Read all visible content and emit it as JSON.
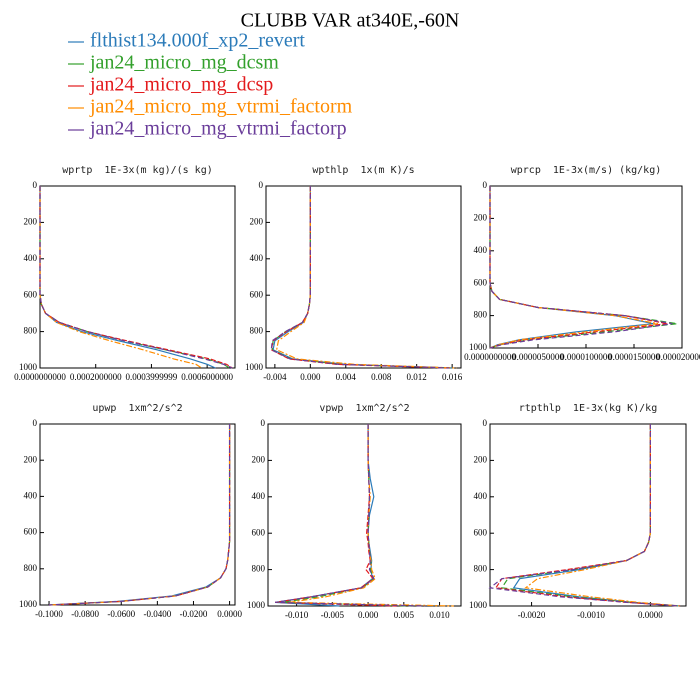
{
  "title": "CLUBB VAR at340E,-60N",
  "legend": [
    {
      "name": "flthist134.000f_xp2_revert",
      "color": "#2b7bb9"
    },
    {
      "name": "jan24_micro_mg_dcsm",
      "color": "#33a02c"
    },
    {
      "name": "jan24_micro_mg_dcsp",
      "color": "#e31a1c"
    },
    {
      "name": "jan24_micro_mg_vtrmi_factorm",
      "color": "#ff8c00"
    },
    {
      "name": "jan24_micro_mg_vtrmi_factorp",
      "color": "#6a3d9a"
    }
  ],
  "chart_data": [
    {
      "type": "profile",
      "title": "wprtp  1E-3x(m kg)/(s kg)",
      "levels": [
        0,
        100,
        200,
        300,
        400,
        500,
        600,
        650,
        700,
        750,
        800,
        850,
        900,
        950,
        980,
        1000
      ],
      "xlim": [
        0,
        0.0007
      ],
      "xticks": [
        {
          "value": 0,
          "label": "0.0000000000"
        },
        {
          "value": 0.0002,
          "label": "0.0002000000"
        },
        {
          "value": 0.0004,
          "label": "0.0003999999"
        },
        {
          "value": 0.0006,
          "label": "0.0006000000"
        }
      ],
      "ylim": [
        0,
        1000
      ],
      "yticks": [
        0,
        200,
        400,
        600,
        800,
        1000
      ],
      "invert_y": true,
      "series": [
        {
          "values": [
            0,
            0,
            0,
            0,
            0,
            0,
            0,
            5e-06,
            2e-05,
            6e-05,
            0.00015,
            0.00028,
            0.00042,
            0.00054,
            0.0006,
            0.00063
          ]
        },
        {
          "values": [
            0,
            0,
            0,
            0,
            0,
            0,
            0,
            5e-06,
            2e-05,
            7e-05,
            0.00017,
            0.0003,
            0.00045,
            0.0006,
            0.00066,
            0.00068
          ]
        },
        {
          "values": [
            0,
            0,
            0,
            0,
            0,
            0,
            0,
            5e-06,
            2e-05,
            7e-05,
            0.00017,
            0.00031,
            0.00046,
            0.00061,
            0.00067,
            0.00069
          ]
        },
        {
          "values": [
            0,
            0,
            0,
            0,
            0,
            0,
            0,
            5e-06,
            2e-05,
            6e-05,
            0.00014,
            0.00025,
            0.00037,
            0.00048,
            0.00056,
            0.00058
          ]
        },
        {
          "values": [
            0,
            0,
            0,
            0,
            0,
            0,
            0,
            5e-06,
            2e-05,
            7e-05,
            0.00017,
            0.0003,
            0.00045,
            0.00059,
            0.00066,
            0.00069
          ]
        }
      ]
    },
    {
      "type": "profile",
      "title": "wpthlp  1x(m K)/s",
      "levels": [
        0,
        100,
        200,
        300,
        400,
        500,
        600,
        650,
        700,
        750,
        800,
        850,
        900,
        950,
        980,
        1000
      ],
      "xlim": [
        -0.005,
        0.017
      ],
      "xticks": [
        -0.004,
        {
          "value": 0,
          "label": "0.000"
        },
        0.004,
        0.008,
        0.012,
        0.016
      ],
      "ylim": [
        0,
        1000
      ],
      "yticks": [
        0,
        200,
        400,
        600,
        800,
        1000
      ],
      "invert_y": true,
      "series": [
        {
          "values": [
            0,
            0,
            0,
            0,
            0,
            0,
            0,
            -0.0001,
            -0.0003,
            -0.0008,
            -0.0025,
            -0.004,
            -0.0042,
            -0.002,
            0.004,
            0.016
          ]
        },
        {
          "values": [
            0,
            0,
            0,
            0,
            0,
            0,
            0,
            -0.0001,
            -0.0003,
            -0.0009,
            -0.0028,
            -0.0042,
            -0.0043,
            -0.0022,
            0.0035,
            0.0158
          ]
        },
        {
          "values": [
            0,
            0,
            0,
            0,
            0,
            0,
            0,
            -0.0001,
            -0.0003,
            -0.0009,
            -0.0027,
            -0.0042,
            -0.0044,
            -0.0024,
            0.003,
            0.0155
          ]
        },
        {
          "values": [
            0,
            0,
            0,
            0,
            0,
            0,
            0,
            -0.0001,
            -0.0003,
            -0.0007,
            -0.0022,
            -0.0036,
            -0.0038,
            -0.0015,
            0.005,
            0.0165
          ]
        },
        {
          "values": [
            0,
            0,
            0,
            0,
            0,
            0,
            0,
            -0.0001,
            -0.0003,
            -0.0009,
            -0.0028,
            -0.0043,
            -0.0044,
            -0.0023,
            0.0032,
            0.0157
          ]
        }
      ]
    },
    {
      "type": "profile",
      "title": "wprcp  1E-3x(m/s) (kg/kg)",
      "levels": [
        0,
        100,
        200,
        300,
        400,
        500,
        600,
        650,
        700,
        750,
        800,
        850,
        900,
        950,
        980,
        1000
      ],
      "xlim": [
        0,
        2e-05
      ],
      "xticks": [
        {
          "value": 0,
          "label": "0.0000000000"
        },
        {
          "value": 5e-06,
          "label": "0.0000050000"
        },
        {
          "value": 1e-05,
          "label": "0.0000100000"
        },
        {
          "value": 1.5e-05,
          "label": "0.0000150000"
        },
        {
          "value": 2e-05,
          "label": "0.0000200000"
        }
      ],
      "ylim": [
        0,
        1000
      ],
      "yticks": [
        0,
        200,
        400,
        600,
        800,
        1000
      ],
      "invert_y": true,
      "series": [
        {
          "values": [
            0,
            0,
            0,
            0,
            0,
            0,
            0,
            2e-07,
            1e-06,
            5e-06,
            1.3e-05,
            1.7e-05,
            9e-06,
            3e-06,
            8e-07,
            0
          ]
        },
        {
          "values": [
            0,
            0,
            0,
            0,
            0,
            0,
            0,
            2e-07,
            1e-06,
            5e-06,
            1.4e-05,
            1.95e-05,
            1.2e-05,
            4e-06,
            1e-06,
            0
          ]
        },
        {
          "values": [
            0,
            0,
            0,
            0,
            0,
            0,
            0,
            2e-07,
            1e-06,
            5e-06,
            1.4e-05,
            1.85e-05,
            1.1e-05,
            3.5e-06,
            1e-06,
            0
          ]
        },
        {
          "values": [
            0,
            0,
            0,
            0,
            0,
            0,
            0,
            2e-07,
            1e-06,
            5e-06,
            1.3e-05,
            1.75e-05,
            1e-05,
            3e-06,
            9e-07,
            0
          ]
        },
        {
          "values": [
            0,
            0,
            0,
            0,
            0,
            0,
            0,
            2e-07,
            1e-06,
            5e-06,
            1.4e-05,
            1.9e-05,
            1.3e-05,
            4.5e-06,
            1.2e-06,
            0
          ]
        }
      ]
    },
    {
      "type": "profile",
      "title": "upwp  1xm^2/s^2",
      "levels": [
        0,
        100,
        200,
        300,
        400,
        500,
        600,
        650,
        700,
        750,
        800,
        850,
        900,
        950,
        980,
        1000
      ],
      "xlim": [
        -0.105,
        0.003
      ],
      "xticks": [
        {
          "value": -0.1,
          "label": "-0.1000"
        },
        {
          "value": -0.08,
          "label": "-0.0800"
        },
        {
          "value": -0.06,
          "label": "-0.0600"
        },
        {
          "value": -0.04,
          "label": "-0.0400"
        },
        {
          "value": -0.02,
          "label": "-0.0200"
        },
        {
          "value": 0,
          "label": "0.0000"
        }
      ],
      "ylim": [
        0,
        1000
      ],
      "yticks": [
        0,
        200,
        400,
        600,
        800,
        1000
      ],
      "invert_y": true,
      "series": [
        {
          "values": [
            0,
            0,
            0,
            0,
            0,
            0,
            0,
            0,
            -0.0005,
            -0.001,
            -0.002,
            -0.005,
            -0.013,
            -0.032,
            -0.062,
            -0.1
          ]
        },
        {
          "values": [
            0,
            0,
            0,
            0,
            0,
            0,
            0,
            0,
            -0.0005,
            -0.001,
            -0.002,
            -0.005,
            -0.012,
            -0.03,
            -0.06,
            -0.1
          ]
        },
        {
          "values": [
            0,
            0,
            0,
            0,
            0,
            0,
            0,
            0,
            -0.0005,
            -0.001,
            -0.002,
            -0.005,
            -0.012,
            -0.03,
            -0.06,
            -0.1
          ]
        },
        {
          "values": [
            0,
            0,
            0,
            0,
            0,
            0,
            0,
            0,
            -0.0005,
            -0.001,
            -0.002,
            -0.005,
            -0.012,
            -0.03,
            -0.06,
            -0.1
          ]
        },
        {
          "values": [
            0,
            0,
            0,
            0,
            0,
            0,
            0,
            0,
            -0.0005,
            -0.001,
            -0.002,
            -0.005,
            -0.012,
            -0.03,
            -0.06,
            -0.1
          ]
        }
      ]
    },
    {
      "type": "profile",
      "title": "vpwp  1xm^2/s^2",
      "levels": [
        0,
        100,
        200,
        300,
        400,
        500,
        600,
        650,
        700,
        750,
        800,
        850,
        900,
        950,
        980,
        1000
      ],
      "xlim": [
        -0.014,
        0.013
      ],
      "xticks": [
        {
          "value": -0.01,
          "label": "-0.010"
        },
        -0.005,
        {
          "value": 0,
          "label": "0.000"
        },
        0.005,
        {
          "value": 0.01,
          "label": "0.010"
        }
      ],
      "ylim": [
        0,
        1000
      ],
      "yticks": [
        0,
        200,
        400,
        600,
        800,
        1000
      ],
      "invert_y": true,
      "series": [
        {
          "values": [
            0,
            0,
            0,
            0.0003,
            0.0008,
            0.0002,
            0,
            0.0001,
            0.0003,
            0.0005,
            0.0004,
            0.0006,
            -0.001,
            -0.008,
            -0.013,
            -0.004
          ]
        },
        {
          "values": [
            0,
            0,
            0,
            0.0001,
            0.0002,
            0.0001,
            0,
            0.0001,
            0.0002,
            0.0004,
            0.0003,
            0.0008,
            -0.0008,
            -0.007,
            -0.012,
            0.006
          ]
        },
        {
          "values": [
            0,
            0,
            0,
            0.0001,
            0.0002,
            0,
            -0.0002,
            0,
            0.0001,
            0.0003,
            -0.0003,
            0.0007,
            -0.001,
            -0.008,
            -0.013,
            0.004
          ]
        },
        {
          "values": [
            0,
            0,
            0,
            0.0001,
            0.0003,
            0.0001,
            0,
            0.0001,
            0.0002,
            0.0004,
            0.0005,
            0.001,
            -0.0006,
            -0.006,
            -0.011,
            0.012
          ]
        },
        {
          "values": [
            0,
            0,
            0,
            0.0001,
            0.0002,
            0.0001,
            0,
            0.0001,
            0.0002,
            0.0003,
            0.0002,
            0.0008,
            -0.0009,
            -0.008,
            -0.013,
            0.008
          ]
        }
      ]
    },
    {
      "type": "profile",
      "title": "rtpthlp  1E-3x(kg K)/kg",
      "levels": [
        0,
        100,
        200,
        300,
        400,
        500,
        600,
        650,
        700,
        750,
        800,
        850,
        900,
        950,
        980,
        1000
      ],
      "xlim": [
        -0.0027,
        0.0006
      ],
      "xticks": [
        {
          "value": -0.002,
          "label": "-0.0020"
        },
        {
          "value": -0.001,
          "label": "-0.0010"
        },
        {
          "value": 0,
          "label": "0.0000"
        }
      ],
      "ylim": [
        0,
        1000
      ],
      "yticks": [
        0,
        200,
        400,
        600,
        800,
        1000
      ],
      "invert_y": true,
      "series": [
        {
          "values": [
            0,
            0,
            0,
            0,
            0,
            0,
            0,
            -3e-05,
            -0.0001,
            -0.0004,
            -0.0012,
            -0.0022,
            -0.0023,
            -0.0012,
            -0.0003,
            0.0005
          ]
        },
        {
          "values": [
            0,
            0,
            0,
            0,
            0,
            0,
            0,
            -3e-05,
            -0.0001,
            -0.0004,
            -0.0013,
            -0.0024,
            -0.0025,
            -0.0013,
            -0.0003,
            0.0005
          ]
        },
        {
          "values": [
            0,
            0,
            0,
            0,
            0,
            0,
            0,
            -3e-05,
            -0.0001,
            -0.0004,
            -0.0014,
            -0.0025,
            -0.0026,
            -0.0014,
            -0.0004,
            0.0005
          ]
        },
        {
          "values": [
            0,
            0,
            0,
            0,
            0,
            0,
            0,
            -3e-05,
            -0.0001,
            -0.0004,
            -0.0011,
            -0.0019,
            -0.0021,
            -0.001,
            -0.0002,
            0.0005
          ]
        },
        {
          "values": [
            0,
            0,
            0,
            0,
            0,
            0,
            0,
            -3e-05,
            -0.0001,
            -0.0004,
            -0.0013,
            -0.0025,
            -0.0027,
            -0.0015,
            -0.0004,
            0.0005
          ]
        }
      ]
    }
  ]
}
